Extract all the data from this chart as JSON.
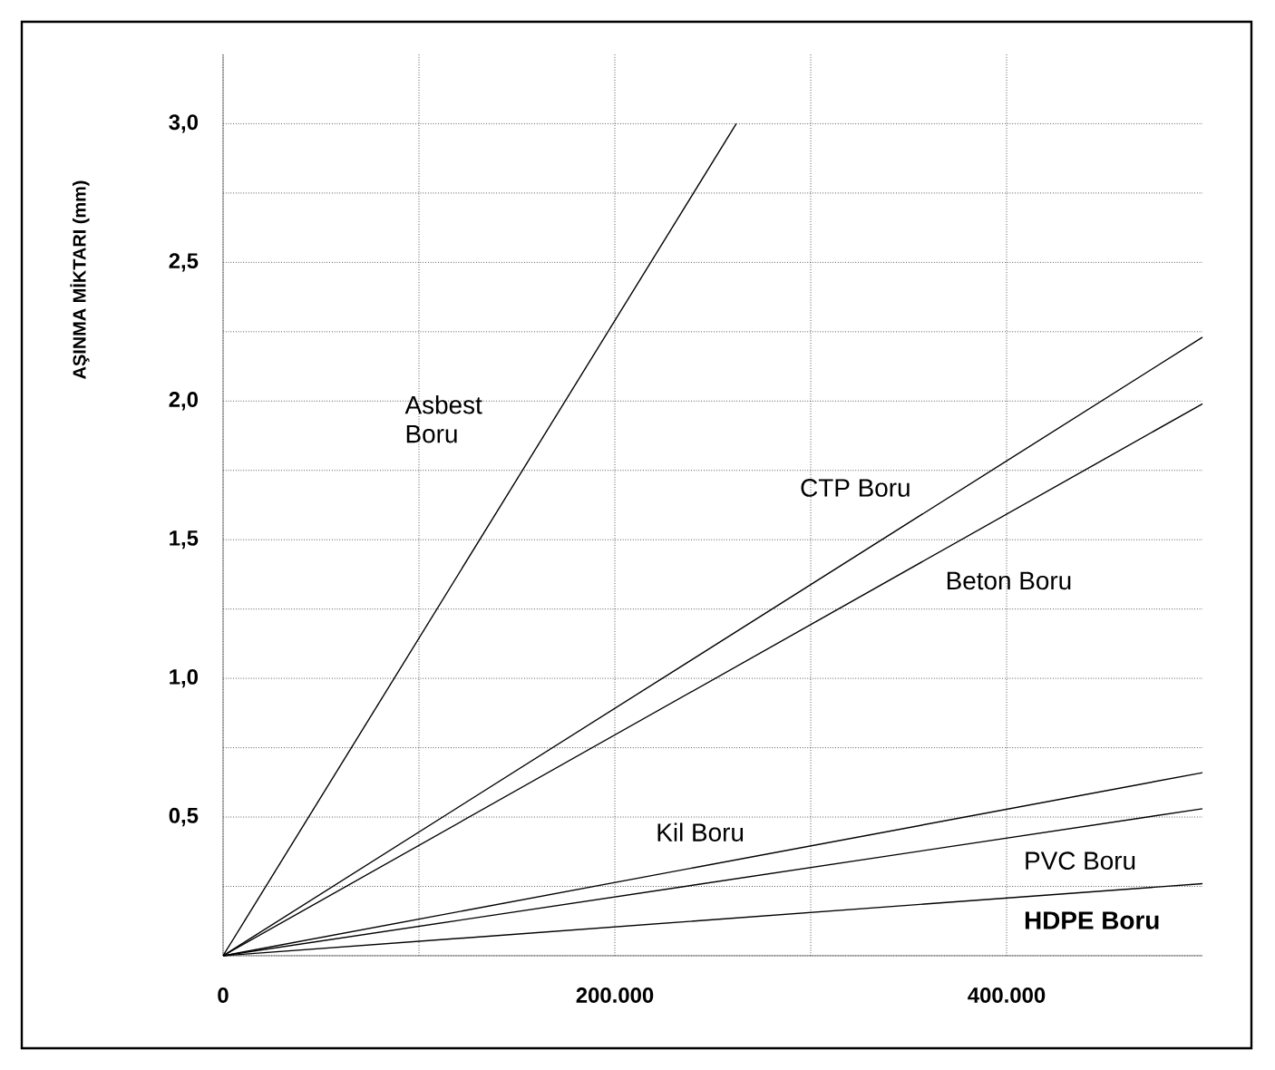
{
  "chart_data": {
    "type": "line",
    "ylabel": "AŞINMA MİKTARI (mm)",
    "series": [
      {
        "name": "Asbest Boru",
        "x": [
          0,
          262000
        ],
        "values": [
          0,
          3.0
        ],
        "color": "#000000"
      },
      {
        "name": "CTP Boru",
        "x": [
          0,
          500000
        ],
        "values": [
          0,
          2.23
        ],
        "color": "#000000"
      },
      {
        "name": "Beton Boru",
        "x": [
          0,
          500000
        ],
        "values": [
          0,
          1.99
        ],
        "color": "#000000"
      },
      {
        "name": "Kil Boru",
        "x": [
          0,
          500000
        ],
        "values": [
          0,
          0.66
        ],
        "color": "#000000"
      },
      {
        "name": "PVC Boru",
        "x": [
          0,
          500000
        ],
        "values": [
          0,
          0.53
        ],
        "color": "#000000"
      },
      {
        "name": "**HDPE Boru**",
        "x": [
          0,
          500000
        ],
        "values": [
          0,
          0.26
        ],
        "color": "#000000"
      }
    ],
    "xlim": [
      0,
      500000
    ],
    "ylim": [
      0,
      3.25
    ],
    "xticks": [
      0,
      {
        "value": 100000,
        "label": null
      },
      {
        "value": 200000,
        "label": "200.000"
      },
      {
        "value": 300000,
        "label": null
      },
      {
        "value": 400000,
        "label": "400.000"
      }
    ],
    "yticks": [
      {
        "value": 0,
        "label": null
      },
      {
        "value": 0.25,
        "label": null
      },
      {
        "value": 0.5,
        "label": "0,5"
      },
      {
        "value": 0.75,
        "label": null
      },
      {
        "value": 1.0,
        "label": "1,0"
      },
      {
        "value": 1.25,
        "label": null
      },
      {
        "value": 1.5,
        "label": "1,5"
      },
      {
        "value": 1.75,
        "label": null
      },
      {
        "value": 2.0,
        "label": "2,0"
      },
      {
        "value": 2.25,
        "label": null
      },
      {
        "value": 2.5,
        "label": "2,5"
      },
      {
        "value": 2.75,
        "label": null
      },
      {
        "value": 3.0,
        "label": "3,0"
      }
    ],
    "grid": true,
    "marker": "none",
    "line_style": "solid"
  }
}
